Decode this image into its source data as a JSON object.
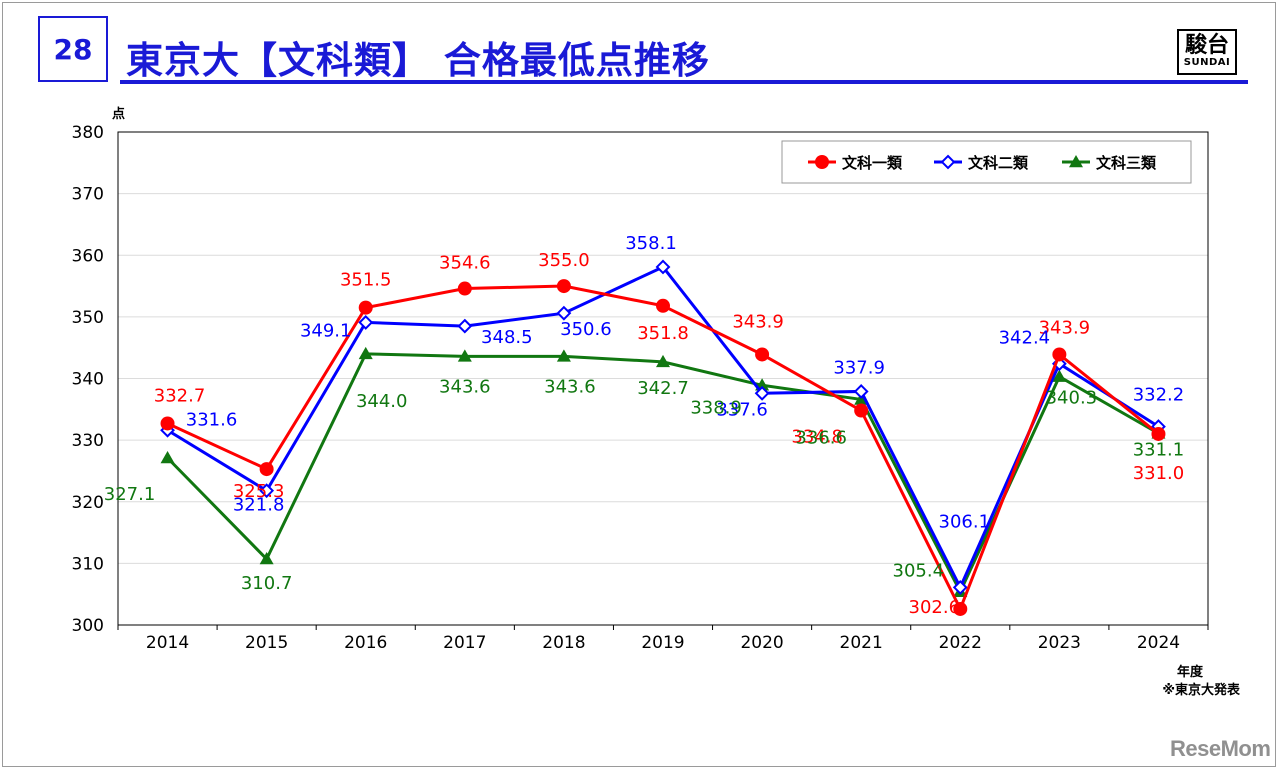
{
  "slide": {
    "number": "28",
    "title": "東京大【文科類】 合格最低点推移",
    "logo_main": "駿台",
    "logo_sub": "SUNDAI"
  },
  "watermark": "ReseMom",
  "colors": {
    "title_blue": "#1a1ad6",
    "red": "#ff0000",
    "blue": "#0000ff",
    "green": "#117711"
  },
  "chart_data": {
    "type": "line",
    "x": [
      "2014",
      "2015",
      "2016",
      "2017",
      "2018",
      "2019",
      "2020",
      "2021",
      "2022",
      "2023",
      "2024"
    ],
    "ylabel": "点",
    "xlabel": "年度",
    "source_note": "※東京大発表",
    "ylim": [
      300,
      380
    ],
    "yticks": [
      300,
      310,
      320,
      330,
      340,
      350,
      360,
      370,
      380
    ],
    "grid": true,
    "legend_position": "top-right",
    "series": [
      {
        "name": "文科一類",
        "color": "#ff0000",
        "marker": "circle",
        "values": [
          332.7,
          325.3,
          351.5,
          354.6,
          355.0,
          351.8,
          343.9,
          334.8,
          302.6,
          343.9,
          331.0
        ],
        "labels": [
          "332.7",
          "325.3",
          "351.5",
          "354.6",
          "355.0",
          "351.8",
          "343.9",
          "334.8",
          "302.6",
          "343.9",
          "331.0"
        ]
      },
      {
        "name": "文科二類",
        "color": "#0000ff",
        "marker": "diamond",
        "values": [
          331.6,
          321.8,
          349.1,
          348.5,
          350.6,
          358.1,
          337.6,
          337.9,
          306.1,
          342.4,
          332.2
        ],
        "labels": [
          "331.6",
          "321.8",
          "349.1",
          "348.5",
          "350.6",
          "358.1",
          "337.6",
          "337.9",
          "306.1",
          "342.4",
          "332.2"
        ]
      },
      {
        "name": "文科三類",
        "color": "#117711",
        "marker": "triangle",
        "values": [
          327.1,
          310.7,
          344.0,
          343.6,
          343.6,
          342.7,
          338.9,
          336.6,
          305.4,
          340.3,
          331.1
        ],
        "labels": [
          "327.1",
          "310.7",
          "344.0",
          "343.6",
          "343.6",
          "342.7",
          "338.9",
          "336.6",
          "305.4",
          "340.3",
          "331.1"
        ]
      }
    ]
  }
}
